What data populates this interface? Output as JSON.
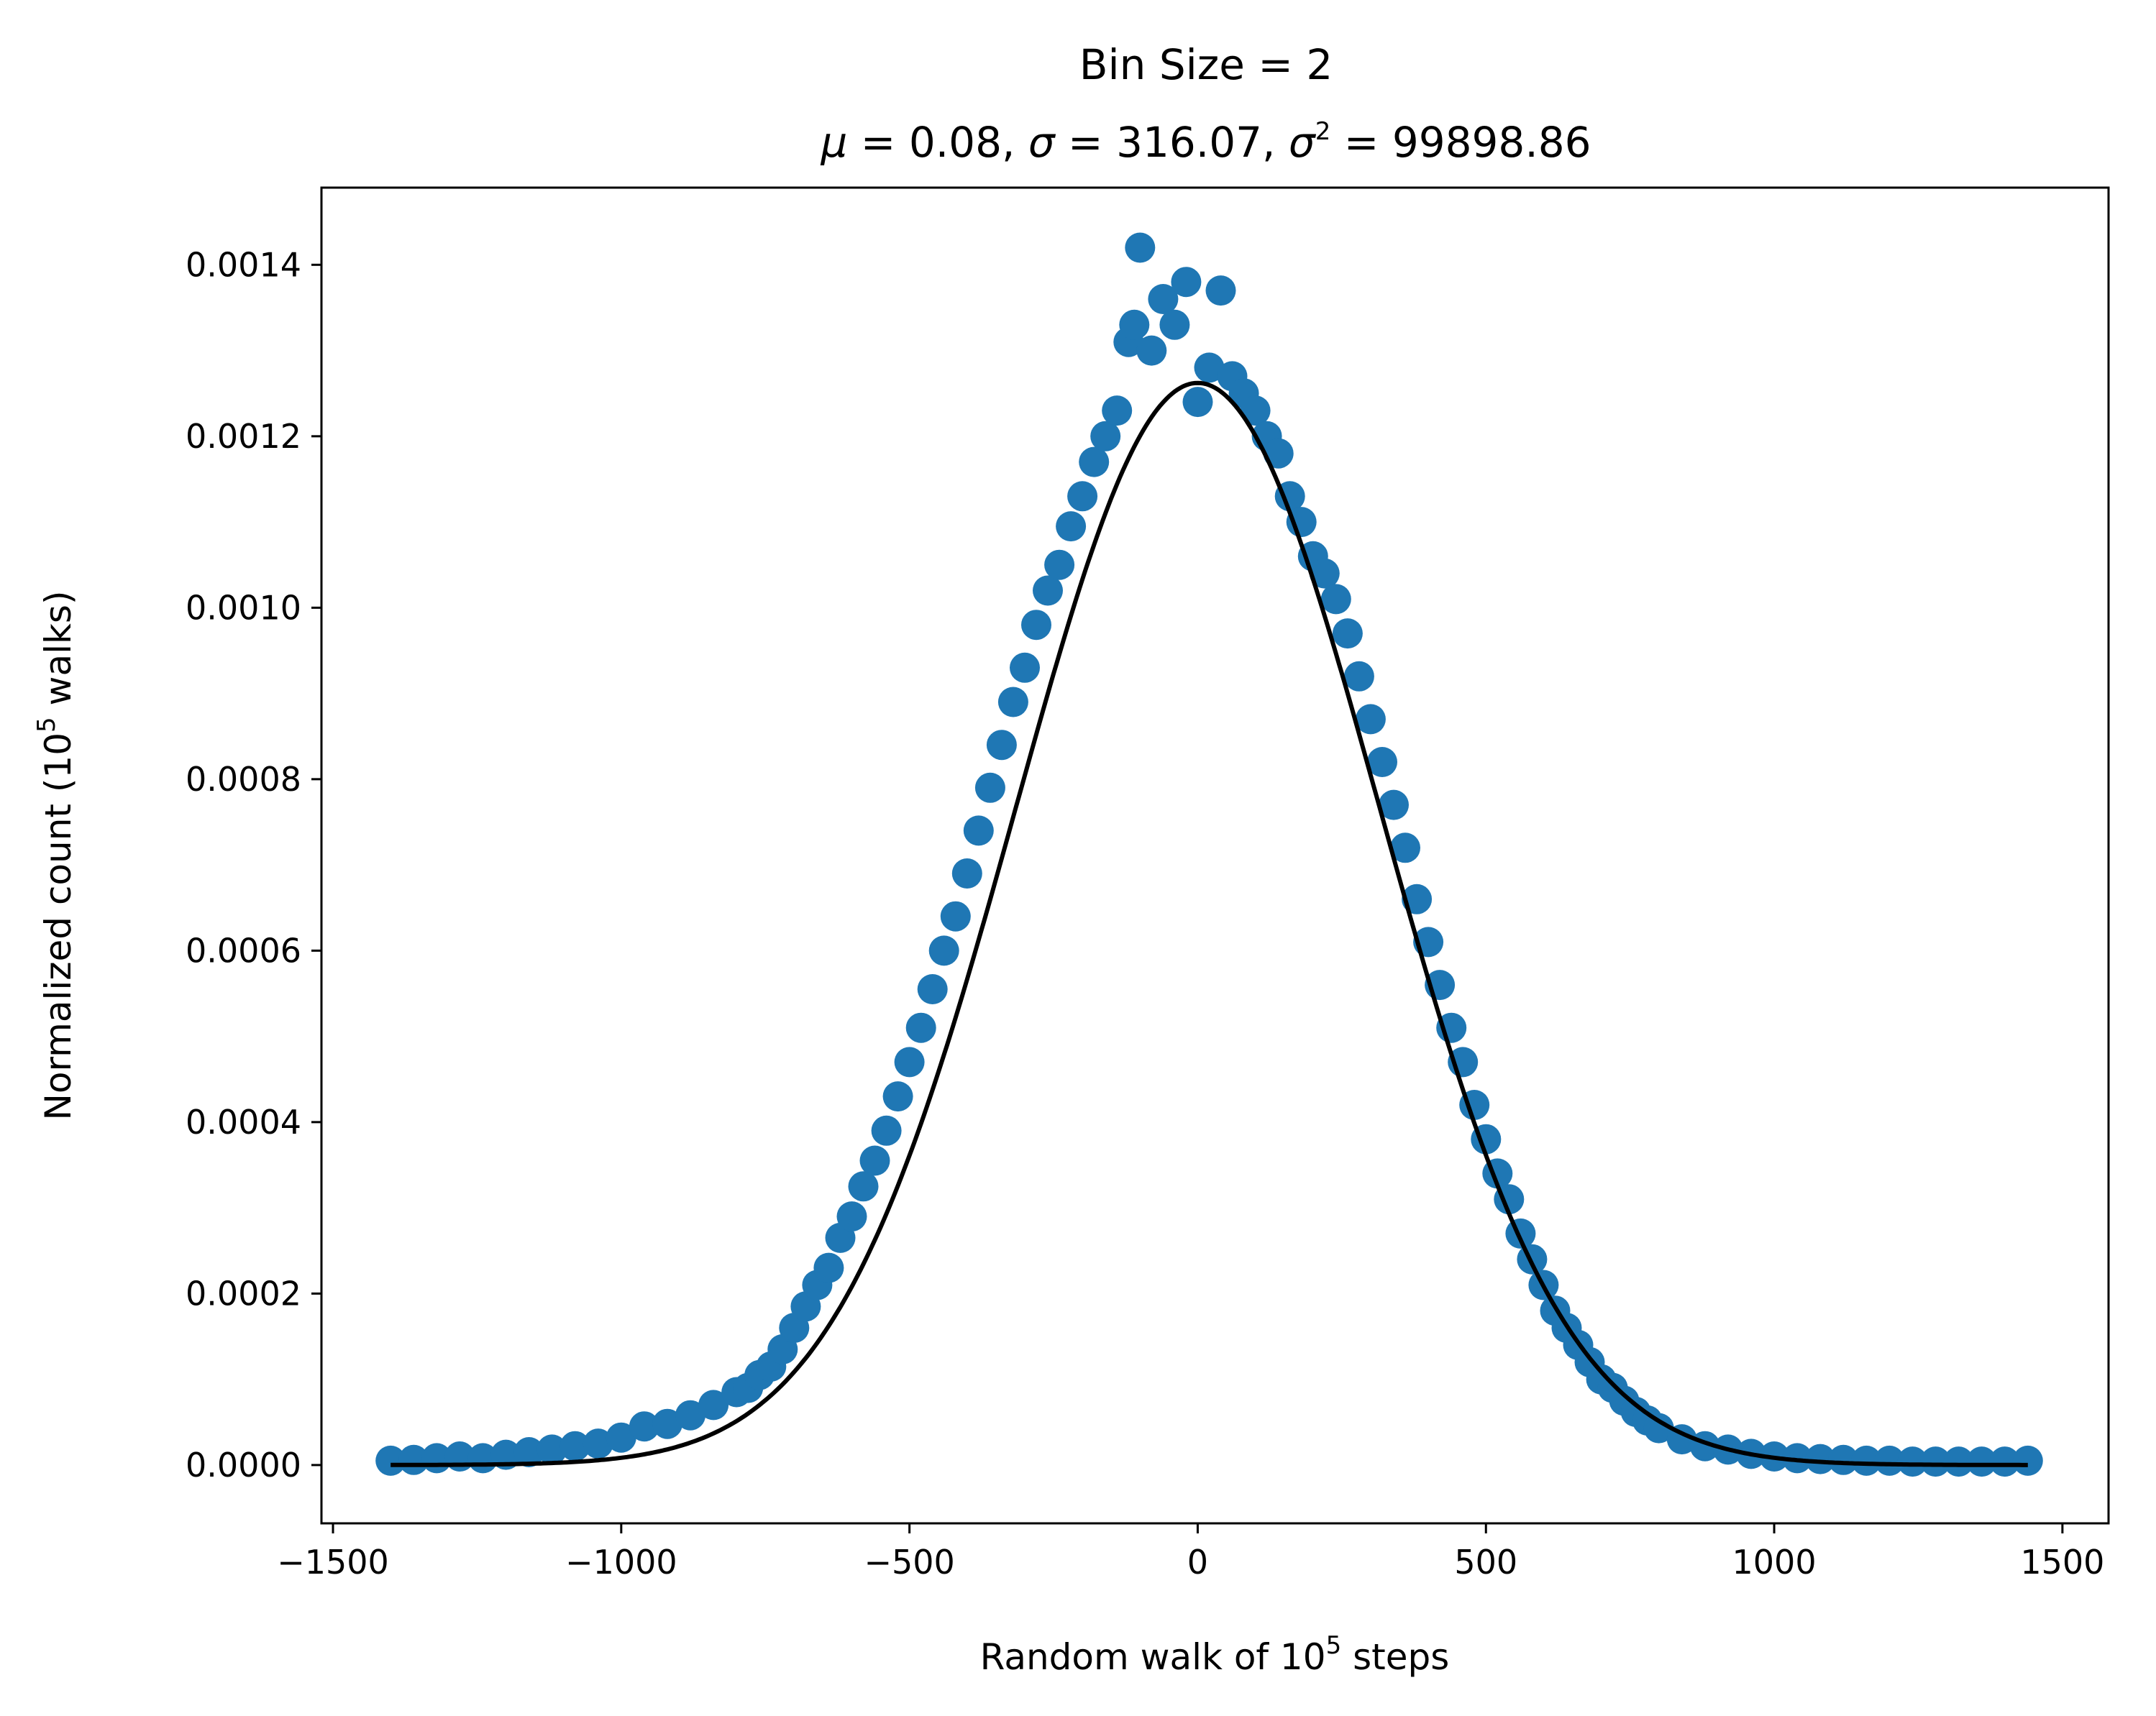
{
  "chart_data": {
    "type": "scatter",
    "title": "Bin Size = 2",
    "subtitle": {
      "mu_sym": "μ",
      "mu": "0.08",
      "sigma_sym": "σ",
      "sigma": "316.07",
      "var_sym": "σ",
      "var_exp": "2",
      "var": "99898.86",
      "eq": " = ",
      "sep": ", "
    },
    "xlabel": {
      "text": "Random walk of 10",
      "sup": "5",
      "suffix": " steps"
    },
    "ylabel": {
      "text": "Normalized count (10",
      "sup": "5",
      "suffix": " walks)"
    },
    "xlim": [
      -1520,
      1580
    ],
    "ylim": [
      -6.8e-05,
      0.00149
    ],
    "x_ticks": [
      -1500,
      -1000,
      -500,
      0,
      500,
      1000,
      1500
    ],
    "x_tick_labels": [
      "−1500",
      "−1000",
      "−500",
      "0",
      "500",
      "1000",
      "1500"
    ],
    "y_ticks": [
      0,
      0.0002,
      0.0004,
      0.0006,
      0.0008,
      0.001,
      0.0012,
      0.0014
    ],
    "y_tick_labels": [
      "0.0000",
      "0.0002",
      "0.0004",
      "0.0006",
      "0.0008",
      "0.0010",
      "0.0012",
      "0.0014"
    ],
    "grid": false,
    "legend": "none",
    "scatter_color": "#1f77b4",
    "fit_color": "#000000",
    "fit": {
      "type": "gaussian",
      "mu": 0.08,
      "sigma": 316.07,
      "x_range": [
        -1400,
        1440
      ]
    },
    "series": [
      {
        "kind": "scatter",
        "x": [
          -1400,
          -1360,
          -1320,
          -1280,
          -1240,
          -1200,
          -1160,
          -1120,
          -1080,
          -1040,
          -1000,
          -960,
          -920,
          -880,
          -840,
          -800,
          -780,
          -760,
          -740,
          -720,
          -700,
          -680,
          -660,
          -640,
          -620,
          -600,
          -580,
          -560,
          -540,
          -520,
          -500,
          -480,
          -460,
          -440,
          -420,
          -400,
          -380,
          -360,
          -340,
          -320,
          -300,
          -280,
          -260,
          -240,
          -220,
          -200,
          -180,
          -160,
          -140,
          -120,
          -110,
          -100,
          -80,
          -60,
          -40,
          -20,
          0,
          20,
          40,
          60,
          80,
          100,
          120,
          140,
          160,
          180,
          200,
          220,
          240,
          260,
          280,
          300,
          320,
          340,
          360,
          380,
          400,
          420,
          440,
          460,
          480,
          500,
          520,
          540,
          560,
          580,
          600,
          620,
          640,
          660,
          680,
          700,
          720,
          740,
          760,
          780,
          800,
          840,
          880,
          920,
          960,
          1000,
          1040,
          1080,
          1120,
          1160,
          1200,
          1240,
          1280,
          1320,
          1360,
          1400,
          1440
        ],
        "y": [
          5e-06,
          6e-06,
          8e-06,
          1e-05,
          8e-06,
          1.2e-05,
          1.5e-05,
          1.8e-05,
          2.2e-05,
          2.5e-05,
          3.2e-05,
          4.5e-05,
          4.8e-05,
          5.8e-05,
          7e-05,
          8.5e-05,
          9e-05,
          0.000105,
          0.000115,
          0.000135,
          0.00016,
          0.000185,
          0.00021,
          0.00023,
          0.000265,
          0.00029,
          0.000325,
          0.000355,
          0.00039,
          0.00043,
          0.00047,
          0.00051,
          0.000555,
          0.0006,
          0.00064,
          0.00069,
          0.00074,
          0.00079,
          0.00084,
          0.00089,
          0.00093,
          0.00098,
          0.00102,
          0.00105,
          0.001095,
          0.00113,
          0.00117,
          0.0012,
          0.00123,
          0.00131,
          0.00133,
          0.00142,
          0.0013,
          0.00136,
          0.00133,
          0.00138,
          0.00124,
          0.00128,
          0.00137,
          0.00127,
          0.00125,
          0.00123,
          0.0012,
          0.00118,
          0.00113,
          0.0011,
          0.00106,
          0.00104,
          0.00101,
          0.00097,
          0.00092,
          0.00087,
          0.00082,
          0.00077,
          0.00072,
          0.00066,
          0.00061,
          0.00056,
          0.00051,
          0.00047,
          0.00042,
          0.00038,
          0.00034,
          0.00031,
          0.00027,
          0.00024,
          0.00021,
          0.00018,
          0.00016,
          0.00014,
          0.00012,
          0.0001,
          9e-05,
          7.5e-05,
          6.2e-05,
          5.2e-05,
          4.3e-05,
          3e-05,
          2.2e-05,
          1.8e-05,
          1.3e-05,
          1e-05,
          8e-06,
          7e-06,
          6e-06,
          5e-06,
          5e-06,
          4e-06,
          4e-06,
          4e-06,
          4e-06,
          4e-06,
          5e-06
        ]
      }
    ]
  }
}
